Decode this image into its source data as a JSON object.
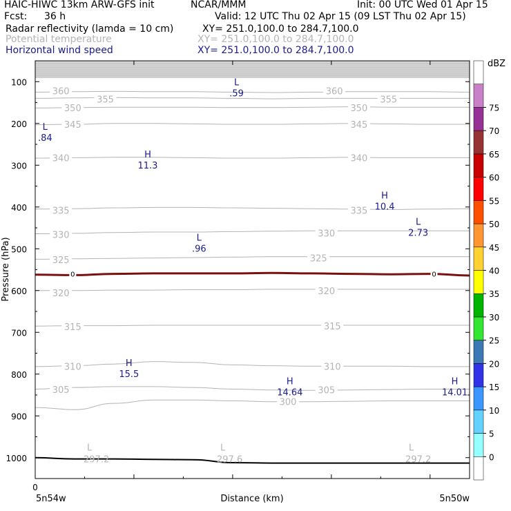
{
  "header": {
    "model": "HAIC-HIWC 13km ARW-GFS init",
    "center": "NCAR/MMM",
    "init": "Init: 00 UTC Wed 01 Apr 15",
    "fcst_label": "Fcst:",
    "fcst_value": "36 h",
    "valid": "Valid: 12 UTC Thu 02 Apr 15 (09 LST Thu 02 Apr 15)",
    "fields": [
      {
        "name": "Radar reflectivity (lamda = 10 cm)",
        "xy": "XY= 251.0,100.0 to 284.7,100.0"
      },
      {
        "name": "Potential temperature",
        "xy": "XY= 251.0,100.0 to 284.7,100.0"
      },
      {
        "name": "Horizontal wind speed",
        "xy": "XY= 251.0,100.0 to 284.7,100.0"
      }
    ]
  },
  "colors": {
    "ground": "#000000",
    "theta": "#b4b4b4",
    "wind_labels": "#1a1a8c",
    "cloud_cell": "#7a1010"
  },
  "chart_data": {
    "type": "heatmap",
    "xlabel": "Distance (km)",
    "ylabel": "Pressure (hPa)",
    "x_tick_zero": "0",
    "x_left_label": "5n54w",
    "x_right_label": "5n50w",
    "y_ticks": [
      100,
      200,
      300,
      400,
      500,
      600,
      700,
      800,
      900,
      1000
    ],
    "ylim": [
      1050,
      50
    ],
    "x_range": [
      0,
      440
    ],
    "zero_contour_label": "0",
    "theta_contours": [
      {
        "value": 360,
        "p": [
          125,
          124,
          123,
          124,
          124,
          125,
          126,
          125,
          124,
          124,
          124,
          125
        ]
      },
      {
        "value": 355,
        "p": [
          140,
          139,
          138,
          139,
          139,
          140,
          141,
          140,
          140,
          140,
          140,
          140
        ]
      },
      {
        "value": 350,
        "p": [
          163,
          162,
          161,
          161,
          161,
          162,
          162,
          161,
          160,
          161,
          161,
          161
        ]
      },
      {
        "value": 345,
        "p": [
          203,
          202,
          200,
          200,
          201,
          202,
          202,
          201,
          200,
          201,
          202,
          202
        ]
      },
      {
        "value": 340,
        "p": [
          283,
          282,
          281,
          281,
          282,
          283,
          283,
          282,
          281,
          282,
          282,
          282
        ]
      },
      {
        "value": 335,
        "p": [
          405,
          404,
          402,
          401,
          401,
          402,
          403,
          404,
          405,
          406,
          405,
          404
        ]
      },
      {
        "value": 330,
        "p": [
          464,
          463,
          461,
          460,
          460,
          459,
          458,
          457,
          457,
          457,
          457,
          457
        ]
      },
      {
        "value": 325,
        "p": [
          525,
          524,
          523,
          522,
          521,
          520,
          519,
          519,
          519,
          519,
          519,
          519
        ]
      },
      {
        "value": 320,
        "p": [
          600,
          600,
          599,
          599,
          598,
          598,
          597,
          597,
          597,
          597,
          597,
          597
        ]
      },
      {
        "value": 315,
        "p": [
          685,
          684,
          684,
          683,
          683,
          683,
          683,
          683,
          683,
          683,
          683,
          683
        ]
      },
      {
        "value": 310,
        "p": [
          782,
          780,
          776,
          770,
          772,
          778,
          780,
          781,
          781,
          781,
          782,
          782
        ]
      },
      {
        "value": 305,
        "p": [
          836,
          832,
          830,
          830,
          832,
          836,
          838,
          839,
          838,
          837,
          836,
          836
        ]
      },
      {
        "value": 300,
        "p": [
          880,
          885,
          870,
          862,
          862,
          864,
          866,
          866,
          865,
          864,
          864,
          864
        ]
      }
    ],
    "theta_labels": [
      {
        "text": "360",
        "x": 26,
        "p": 122
      },
      {
        "text": "355",
        "x": 71,
        "p": 142
      },
      {
        "text": "350",
        "x": 38,
        "p": 162
      },
      {
        "text": "345",
        "x": 38,
        "p": 202
      },
      {
        "text": "340",
        "x": 26,
        "p": 282
      },
      {
        "text": "335",
        "x": 26,
        "p": 408
      },
      {
        "text": "330",
        "x": 26,
        "p": 466
      },
      {
        "text": "325",
        "x": 26,
        "p": 526
      },
      {
        "text": "320",
        "x": 26,
        "p": 605
      },
      {
        "text": "315",
        "x": 38,
        "p": 686
      },
      {
        "text": "310",
        "x": 38,
        "p": 781
      },
      {
        "text": "305",
        "x": 26,
        "p": 837
      },
      {
        "text": "360",
        "x": 303,
        "p": 122
      },
      {
        "text": "355",
        "x": 358,
        "p": 142
      },
      {
        "text": "350",
        "x": 328,
        "p": 162
      },
      {
        "text": "345",
        "x": 328,
        "p": 202
      },
      {
        "text": "340",
        "x": 328,
        "p": 282
      },
      {
        "text": "335",
        "x": 328,
        "p": 408
      },
      {
        "text": "330",
        "x": 295,
        "p": 462
      },
      {
        "text": "325",
        "x": 287,
        "p": 522
      },
      {
        "text": "320",
        "x": 295,
        "p": 600
      },
      {
        "text": "315",
        "x": 301,
        "p": 685
      },
      {
        "text": "310",
        "x": 301,
        "p": 781
      },
      {
        "text": "305",
        "x": 295,
        "p": 838
      },
      {
        "text": "300",
        "x": 256,
        "p": 866
      }
    ],
    "ground_p": [
      1000,
      1003,
      1003,
      1004,
      1005,
      1012,
      1013,
      1013,
      1013,
      1013,
      1013,
      1013
    ],
    "ground_lows": [
      {
        "symbol": "L",
        "value": "297.2",
        "x": 62,
        "p": 1003
      },
      {
        "symbol": "L",
        "value": "297.6",
        "x": 197,
        "p": 1003
      },
      {
        "symbol": "L",
        "value": "297.2",
        "x": 388,
        "p": 1003
      }
    ],
    "wind_extrema": [
      {
        "symbol": "L",
        "value": ".59",
        "x": 204,
        "p": 115
      },
      {
        "symbol": "L",
        "value": ".84",
        "x": 10,
        "p": 222
      },
      {
        "symbol": "H",
        "value": "11.3",
        "x": 114,
        "p": 288
      },
      {
        "symbol": "H",
        "value": "10.4",
        "x": 354,
        "p": 386
      },
      {
        "symbol": "L",
        "value": "2.73",
        "x": 388,
        "p": 449
      },
      {
        "symbol": "L",
        "value": ".96",
        "x": 166,
        "p": 487
      },
      {
        "symbol": "H",
        "value": "15.5",
        "x": 95,
        "p": 787
      },
      {
        "symbol": "H",
        "value": "14.64",
        "x": 258,
        "p": 831
      },
      {
        "symbol": "H",
        "value": "14.01",
        "x": 425,
        "p": 831
      }
    ],
    "zero_contour_p": [
      562,
      563,
      560,
      559,
      559,
      559,
      558,
      559,
      560,
      561,
      560,
      564
    ],
    "colorbar": {
      "unit": "dBZ",
      "levels": [
        "0",
        "5",
        "10",
        "15",
        "20",
        "25",
        "30",
        "35",
        "40",
        "45",
        "50",
        "55",
        "60",
        "65",
        "70",
        "75"
      ],
      "colors": [
        "#ffffff",
        "#96ffff",
        "#64d2ff",
        "#3c96ff",
        "#3232e6",
        "#3c78b4",
        "#32e632",
        "#00b400",
        "#ffff00",
        "#ffd232",
        "#ff9632",
        "#ff5000",
        "#ff0000",
        "#c80000",
        "#963232",
        "#963296",
        "#c880c8",
        "#ffffff"
      ]
    }
  }
}
